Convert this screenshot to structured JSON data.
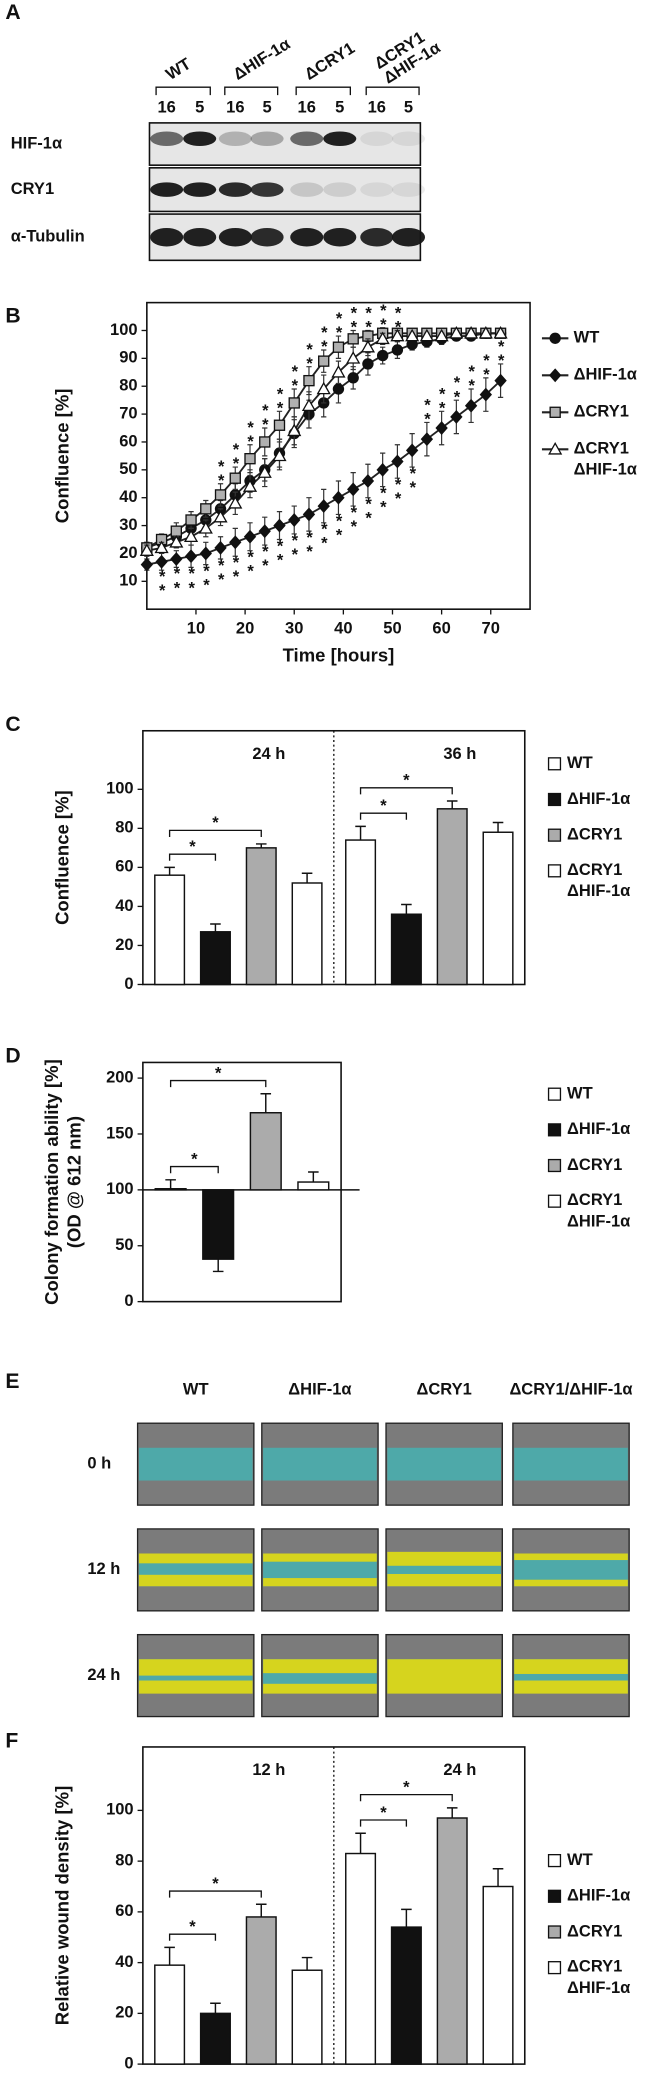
{
  "blot": {
    "panel": "A",
    "strains": [
      "WT",
      "ΔHIF-1α",
      "ΔCRY1",
      "ΔCRY1 ΔHIF-1α"
    ],
    "lanes": [
      "16",
      "5",
      "16",
      "5",
      "16",
      "5",
      "16",
      "5"
    ],
    "rows": [
      "HIF-1α",
      "CRY1",
      "α-Tubulin"
    ]
  },
  "chart_data": [
    {
      "panel": "B",
      "type": "line",
      "xlabel": "Time [hours]",
      "ylabel": "Confluence [%]",
      "x": [
        0,
        3,
        6,
        9,
        12,
        15,
        18,
        21,
        24,
        27,
        30,
        33,
        36,
        39,
        42,
        45,
        48,
        51,
        54,
        57,
        60,
        63,
        66,
        69,
        72
      ],
      "xlim": [
        0,
        78
      ],
      "xticks": [
        10,
        20,
        30,
        40,
        50,
        60,
        70
      ],
      "ylim": [
        0,
        110
      ],
      "yticks": [
        10,
        20,
        30,
        40,
        50,
        60,
        70,
        80,
        90,
        100
      ],
      "series": [
        {
          "name": "WT",
          "color": "#111111",
          "marker": "circle",
          "values": [
            22,
            24,
            26,
            29,
            32,
            36,
            41,
            46,
            50,
            56,
            63,
            70,
            74,
            79,
            83,
            88,
            91,
            93,
            95,
            96,
            97,
            98,
            98,
            99,
            99
          ],
          "errors": [
            2,
            2,
            2,
            3,
            3,
            3,
            4,
            4,
            4,
            5,
            5,
            5,
            5,
            5,
            4,
            4,
            3,
            3,
            2,
            2,
            2,
            1,
            1,
            1,
            1
          ]
        },
        {
          "name": "ΔHIF-1α",
          "color": "#111111",
          "marker": "diamond",
          "values": [
            16,
            17,
            18,
            19,
            20,
            22,
            24,
            26,
            28,
            30,
            32,
            34,
            37,
            40,
            43,
            46,
            50,
            53,
            57,
            61,
            65,
            69,
            73,
            77,
            82
          ],
          "errors": [
            2,
            3,
            3,
            4,
            4,
            4,
            5,
            5,
            5,
            5,
            5,
            6,
            6,
            6,
            6,
            6,
            6,
            6,
            6,
            6,
            6,
            6,
            6,
            6,
            6
          ],
          "significance": [
            null,
            "**",
            "**",
            "**",
            "**",
            "**",
            "**",
            "**",
            "**",
            "**",
            "**",
            "**",
            "**",
            "**",
            "**",
            "**",
            "**",
            "**",
            "**",
            "**",
            "**",
            "**",
            "**",
            "**",
            "**"
          ]
        },
        {
          "name": "ΔCRY1",
          "color": "#b0b0b0",
          "marker": "square",
          "values": [
            22,
            25,
            28,
            32,
            36,
            41,
            47,
            54,
            60,
            66,
            74,
            82,
            89,
            94,
            97,
            98,
            99,
            99,
            99,
            99,
            99,
            99,
            99,
            99,
            99
          ],
          "errors": [
            2,
            2,
            3,
            3,
            3,
            4,
            4,
            5,
            5,
            5,
            5,
            5,
            4,
            4,
            3,
            2,
            2,
            1,
            1,
            1,
            1,
            1,
            1,
            1,
            1
          ],
          "significance": [
            null,
            null,
            null,
            null,
            null,
            "**",
            "**",
            "**",
            "**",
            "**",
            "**",
            "**",
            "**",
            "**",
            "**",
            "**",
            "**",
            "**",
            null,
            null,
            null,
            null,
            null,
            null,
            null
          ]
        },
        {
          "name": "ΔCRY1 ΔHIF-1α",
          "color": "#ffffff",
          "marker": "triangle",
          "values": [
            21,
            22,
            24,
            26,
            29,
            33,
            38,
            44,
            49,
            55,
            64,
            73,
            79,
            85,
            90,
            94,
            97,
            98,
            98,
            98,
            98,
            99,
            99,
            99,
            99
          ],
          "errors": [
            2,
            2,
            2,
            3,
            3,
            3,
            4,
            4,
            5,
            5,
            5,
            5,
            5,
            4,
            4,
            3,
            2,
            2,
            1,
            1,
            1,
            1,
            1,
            1,
            1
          ]
        }
      ]
    },
    {
      "panel": "C",
      "type": "bar",
      "ylabel": "Confluence [%]",
      "categories": [
        "24 h",
        "36 h"
      ],
      "ylim": [
        0,
        130
      ],
      "yticks": [
        0,
        20,
        40,
        60,
        80,
        100
      ],
      "baseline": 0,
      "series": [
        {
          "name": "WT",
          "color": "#ffffff",
          "values": [
            56,
            74
          ],
          "errors": [
            4,
            7
          ]
        },
        {
          "name": "ΔHIF-1α",
          "color": "#111111",
          "values": [
            27,
            36
          ],
          "errors": [
            4,
            5
          ]
        },
        {
          "name": "ΔCRY1",
          "color": "#ababab",
          "values": [
            70,
            90
          ],
          "errors": [
            2,
            4
          ]
        },
        {
          "name": "ΔCRY1 ΔHIF-1α",
          "color": "#ffffff",
          "values": [
            52,
            78
          ],
          "errors": [
            5,
            5
          ]
        }
      ],
      "brackets": [
        {
          "category": 0,
          "from": 0,
          "to": 1,
          "label": "*"
        },
        {
          "category": 0,
          "from": 0,
          "to": 2,
          "label": "*"
        },
        {
          "category": 1,
          "from": 0,
          "to": 1,
          "label": "*"
        },
        {
          "category": 1,
          "from": 0,
          "to": 2,
          "label": "*"
        }
      ]
    },
    {
      "panel": "D",
      "type": "bar",
      "ylabel": "Colony formation ability [%]",
      "ylabel_note": "(OD @ 612 nm)",
      "categories": [
        null
      ],
      "ylim": [
        0,
        214
      ],
      "yticks": [
        0,
        50,
        100,
        150,
        200
      ],
      "baseline": 100,
      "series": [
        {
          "name": "WT",
          "color": "#ffffff",
          "values": [
            101
          ],
          "errors": [
            8
          ]
        },
        {
          "name": "ΔHIF-1α",
          "color": "#111111",
          "values": [
            38
          ],
          "errors": [
            11
          ]
        },
        {
          "name": "ΔCRY1",
          "color": "#ababab",
          "values": [
            169
          ],
          "errors": [
            17
          ]
        },
        {
          "name": "ΔCRY1 ΔHIF-1α",
          "color": "#ffffff",
          "values": [
            107
          ],
          "errors": [
            9
          ]
        }
      ],
      "brackets": [
        {
          "category": 0,
          "from": 0,
          "to": 1,
          "label": "*"
        },
        {
          "category": 0,
          "from": 0,
          "to": 2,
          "label": "*"
        }
      ]
    },
    {
      "panel": "F",
      "type": "bar",
      "ylabel": "Relative wound density [%]",
      "categories": [
        "12 h",
        "24 h"
      ],
      "ylim": [
        0,
        125
      ],
      "yticks": [
        0,
        20,
        40,
        60,
        80,
        100
      ],
      "baseline": 0,
      "series": [
        {
          "name": "WT",
          "color": "#ffffff",
          "values": [
            39,
            83
          ],
          "errors": [
            7,
            8
          ]
        },
        {
          "name": "ΔHIF-1α",
          "color": "#111111",
          "values": [
            20,
            54
          ],
          "errors": [
            4,
            7
          ]
        },
        {
          "name": "ΔCRY1",
          "color": "#ababab",
          "values": [
            58,
            97
          ],
          "errors": [
            5,
            4
          ]
        },
        {
          "name": "ΔCRY1 ΔHIF-1α",
          "color": "#ffffff",
          "values": [
            37,
            70
          ],
          "errors": [
            5,
            7
          ]
        }
      ],
      "brackets": [
        {
          "category": 0,
          "from": 0,
          "to": 1,
          "label": "*"
        },
        {
          "category": 0,
          "from": 0,
          "to": 2,
          "label": "*"
        },
        {
          "category": 1,
          "from": 0,
          "to": 1,
          "label": "*"
        },
        {
          "category": 1,
          "from": 0,
          "to": 2,
          "label": "*"
        }
      ]
    }
  ],
  "wound_assay": {
    "panel": "E",
    "columns": [
      "WT",
      "ΔHIF-1α",
      "ΔCRY1",
      "ΔCRY1/ΔHIF-1α"
    ],
    "rows": [
      "0 h",
      "12 h",
      "24 h"
    ]
  }
}
